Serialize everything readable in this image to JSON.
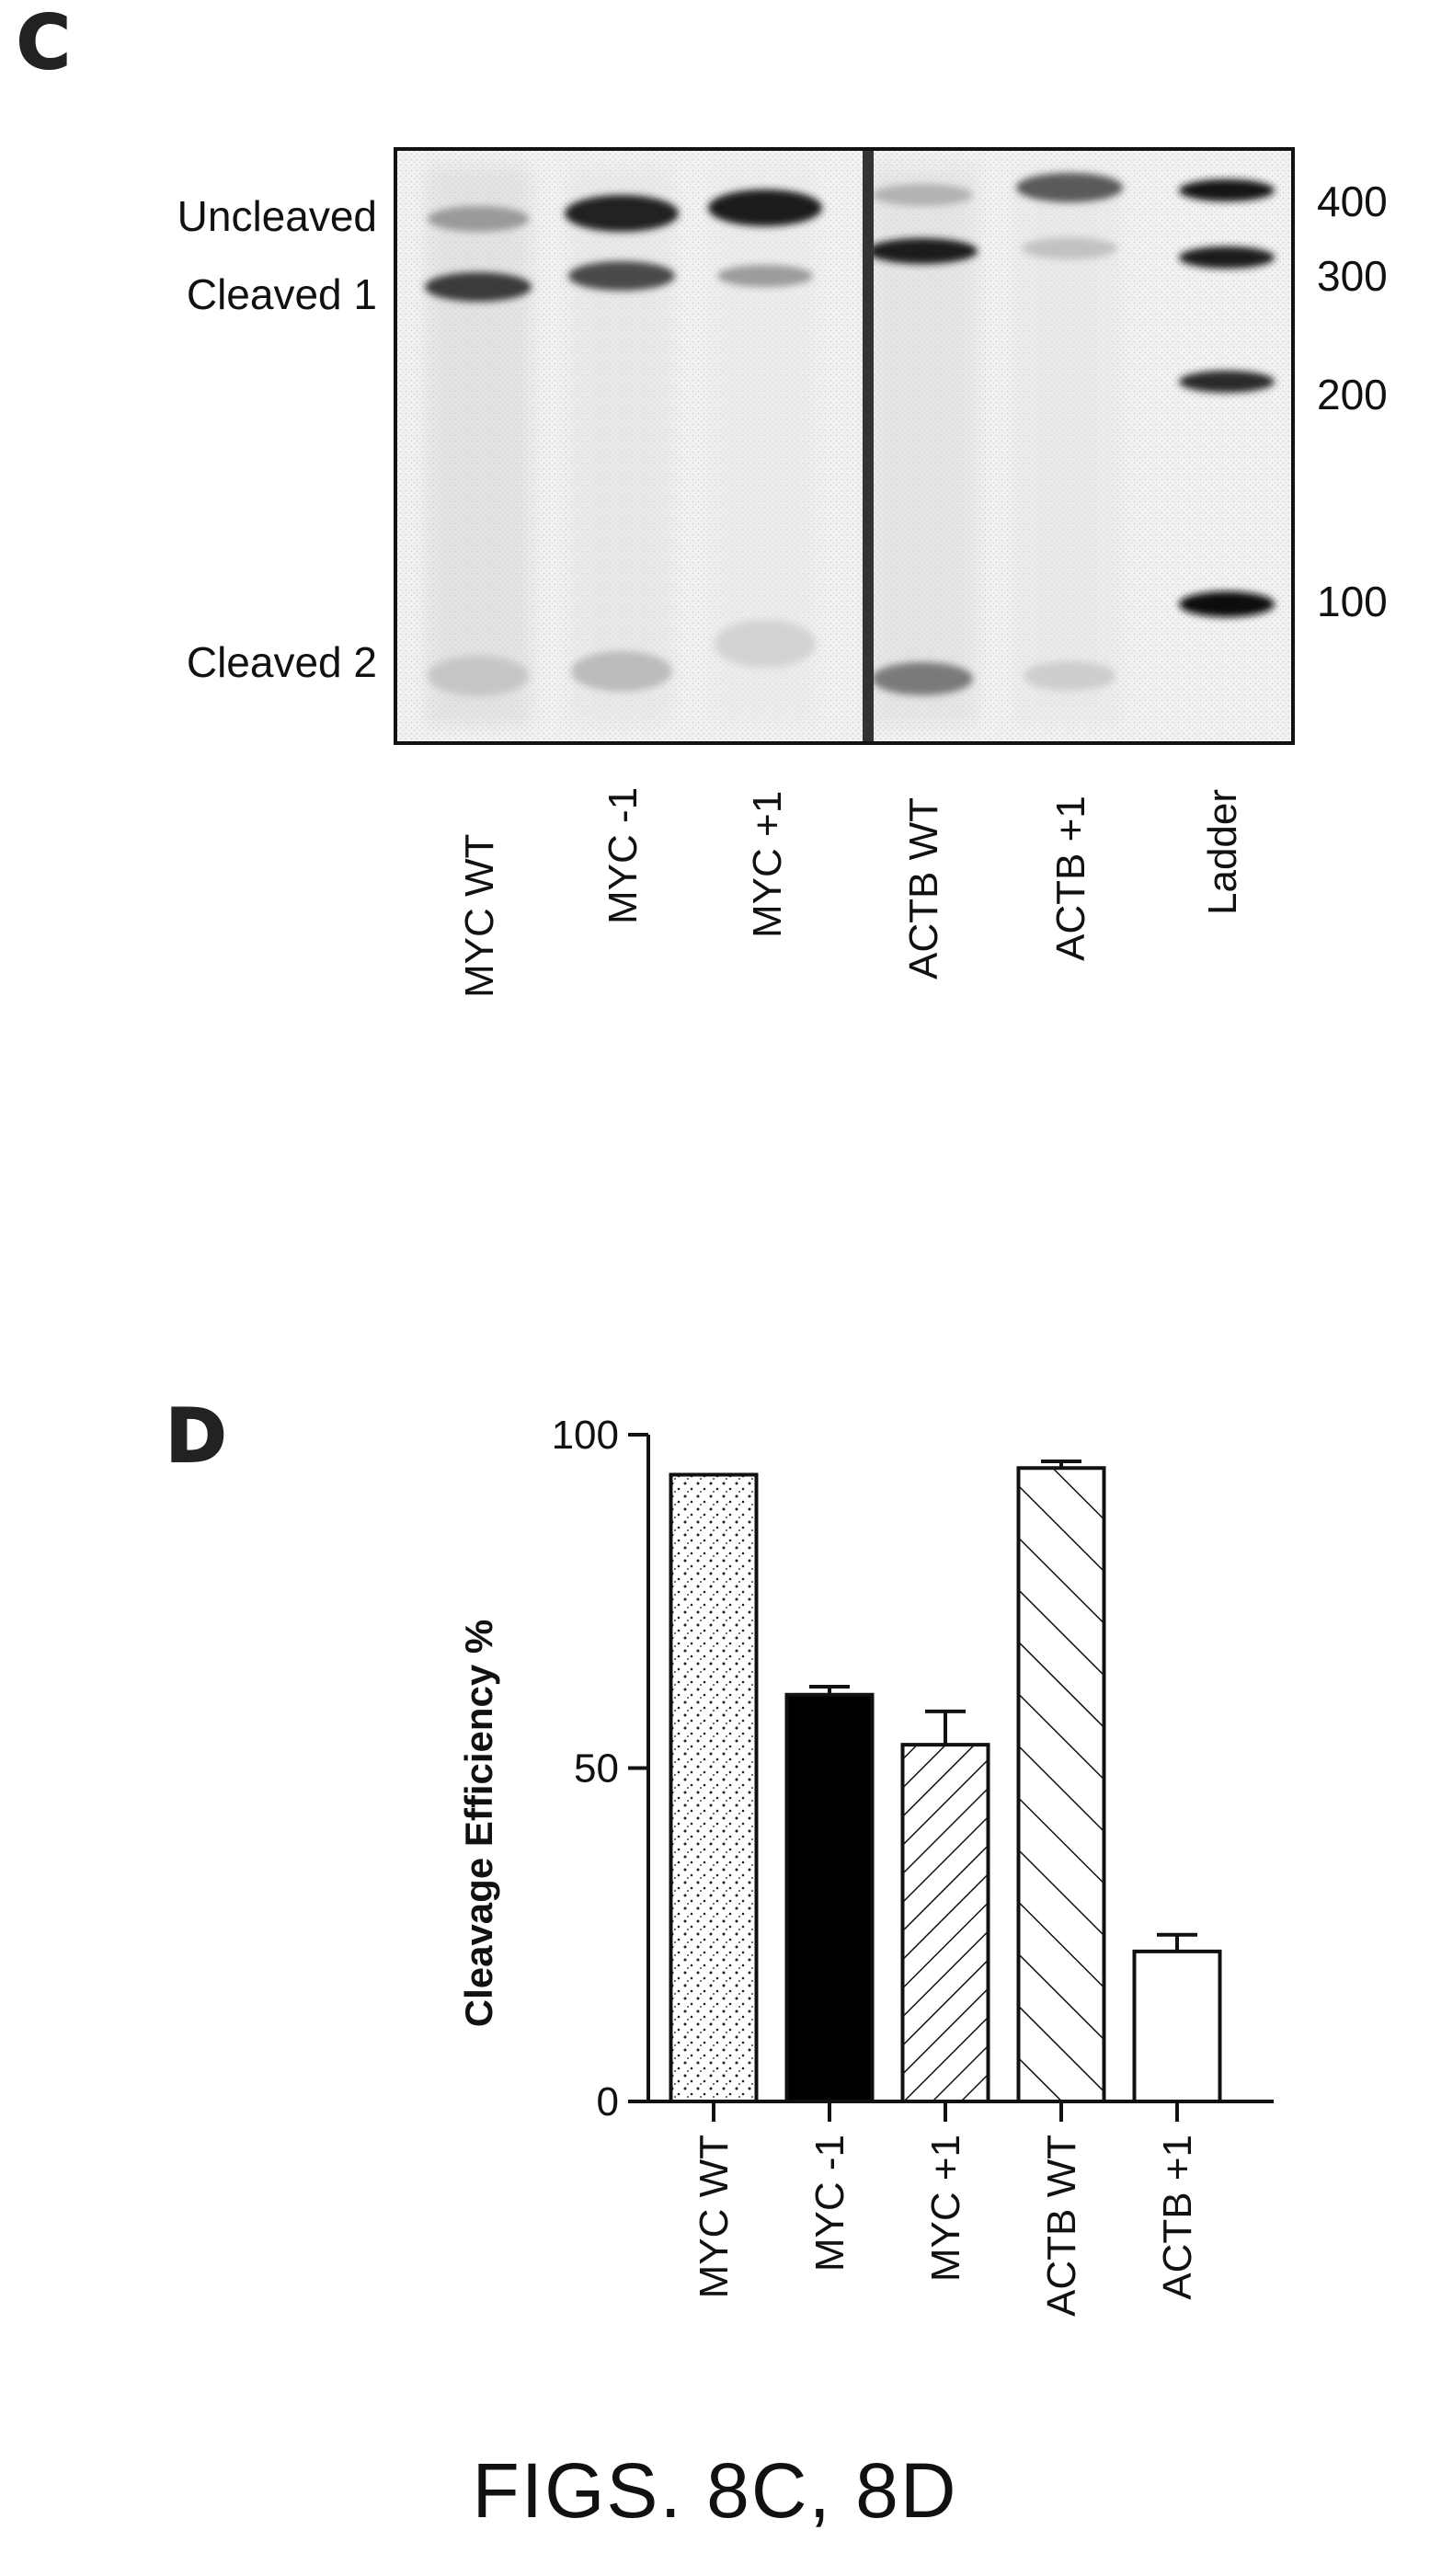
{
  "panel_c": {
    "letter": "C",
    "band_labels": [
      "Uncleaved",
      "Cleaved 1",
      "Cleaved 2"
    ],
    "ladder_marks": [
      "400",
      "300",
      "200",
      "100"
    ],
    "lanes": [
      "MYC WT",
      "MYC -1",
      "MYC +1",
      "ACTB WT",
      "ACTB +1",
      "Ladder"
    ]
  },
  "panel_d": {
    "letter": "D"
  },
  "caption": "FIGS. 8C, 8D",
  "colors": {
    "ink": "#111111",
    "gel_bg": "#f1f1f1",
    "band": "#2a2a2a"
  },
  "chart_data": {
    "type": "bar",
    "categories": [
      "MYC WT",
      "MYC -1",
      "MYC +1",
      "ACTB WT",
      "ACTB +1"
    ],
    "values": [
      94,
      61,
      53.5,
      95,
      22.5
    ],
    "errors": [
      0,
      1.2,
      5,
      1,
      2.5
    ],
    "fills": [
      "dotted",
      "solid-black",
      "hatch-backslash",
      "hatch-slash",
      "white"
    ],
    "title": "",
    "xlabel": "",
    "ylabel": "Cleavage Efficiency %",
    "ylim": [
      0,
      100
    ],
    "yticks": [
      "0",
      "50",
      "100"
    ],
    "grid": false
  }
}
